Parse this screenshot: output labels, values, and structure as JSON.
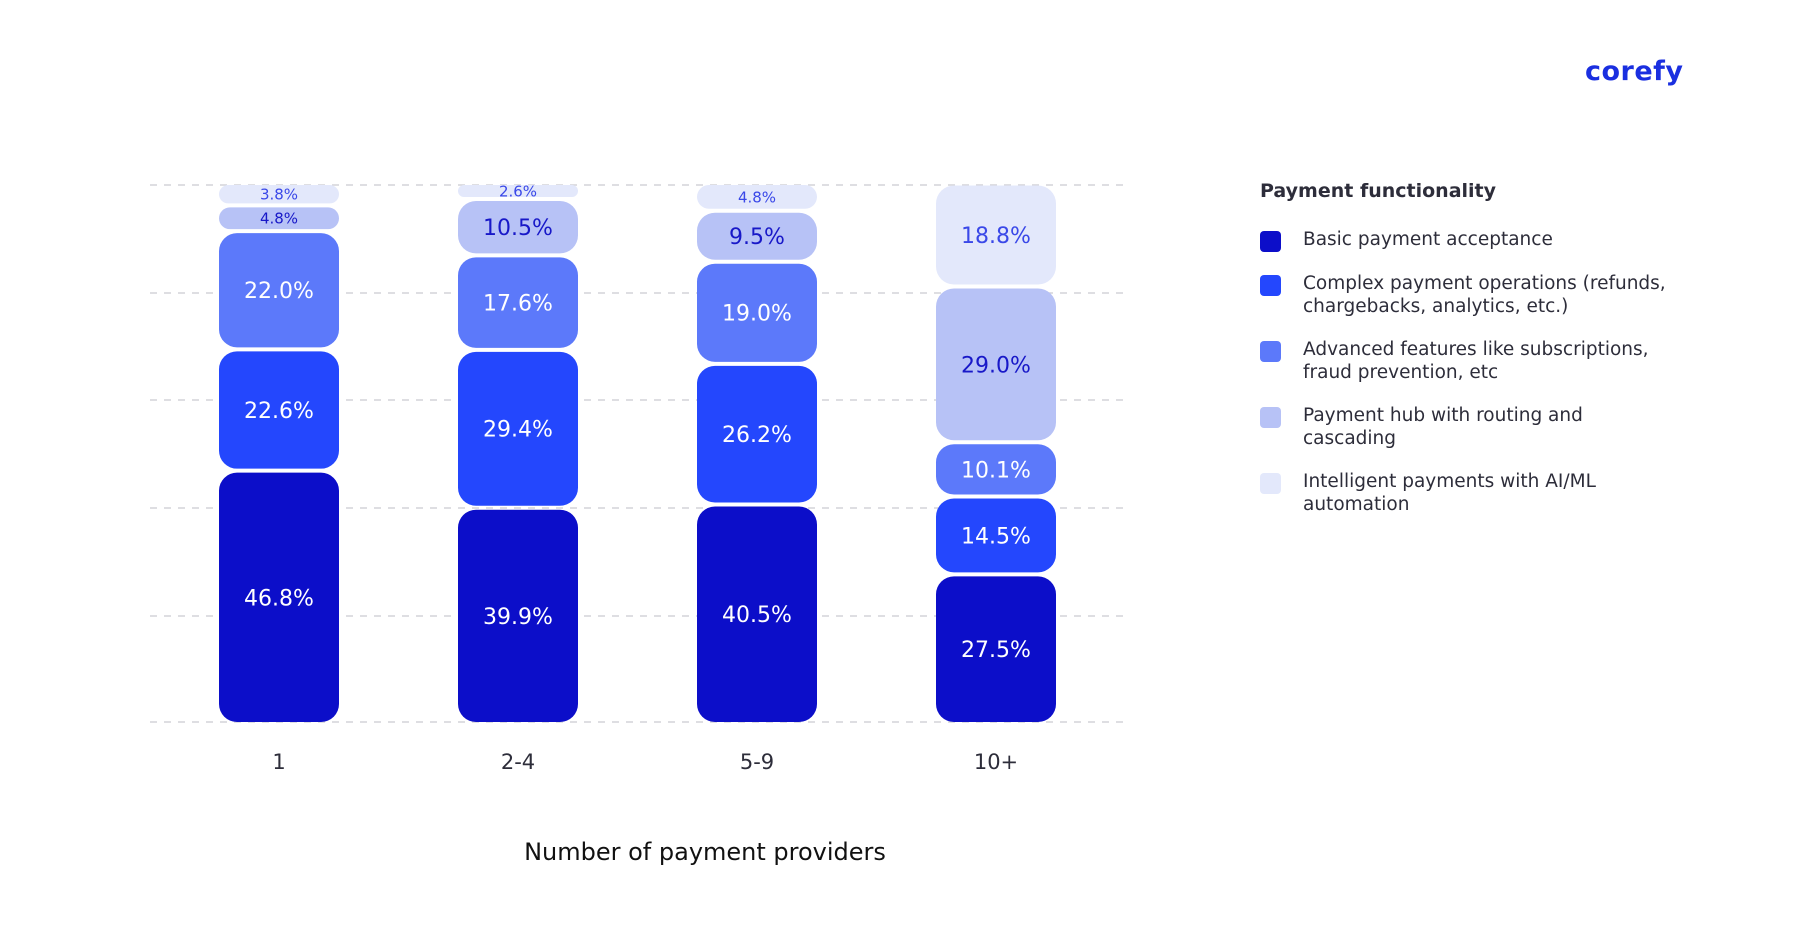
{
  "brand": "corefy",
  "chart_data": {
    "type": "bar",
    "stacked": true,
    "categories": [
      "1",
      "2-4",
      "5-9",
      "10+"
    ],
    "xlabel": "Number of payment providers",
    "ylabel": "",
    "ylim": [
      0,
      100
    ],
    "grid": true,
    "legend_title": "Payment functionality",
    "legend_placement": "right",
    "series": [
      {
        "name": "Basic payment acceptance",
        "color": "#0c0ec9",
        "values": [
          46.8,
          39.9,
          40.5,
          27.5
        ],
        "labels": [
          "46.8%",
          "39.9%",
          "40.5%",
          "27.5%"
        ]
      },
      {
        "name": "Complex payment operations (refunds, chargebacks, analytics, etc.)",
        "color": "#2447fd",
        "values": [
          22.6,
          29.4,
          26.2,
          14.5
        ],
        "labels": [
          "22.6%",
          "29.4%",
          "26.2%",
          "14.5%"
        ]
      },
      {
        "name": "Advanced features like subscriptions, fraud prevention, etc",
        "color": "#5c79fa",
        "values": [
          22.0,
          17.6,
          19.0,
          10.1
        ],
        "labels": [
          "22.0%",
          "17.6%",
          "19.0%",
          "10.1%"
        ]
      },
      {
        "name": "Payment hub with routing and cascading",
        "color": "#b7c2f6",
        "values": [
          4.8,
          10.5,
          9.5,
          29.0
        ],
        "labels": [
          "4.8%",
          "10.5%",
          "9.5%",
          "29.0%"
        ]
      },
      {
        "name": "Intelligent payments with AI/ML automation",
        "color": "#e3e8fb",
        "values": [
          3.8,
          2.6,
          4.8,
          18.8
        ],
        "labels": [
          "3.8%",
          "2.6%",
          "4.8%",
          "18.8%"
        ]
      }
    ]
  },
  "legend": {
    "title": "Payment functionality",
    "items": [
      {
        "label": "Basic payment acceptance",
        "color": "#0c0ec9"
      },
      {
        "label": "Complex payment operations (refunds, chargebacks, analytics, etc.)",
        "color": "#2447fd"
      },
      {
        "label": "Advanced features like subscriptions, fraud prevention, etc",
        "color": "#5c79fa"
      },
      {
        "label": "Payment hub with routing and cascading",
        "color": "#b7c2f6"
      },
      {
        "label": "Intelligent payments with AI/ML automation",
        "color": "#e3e8fb"
      }
    ]
  }
}
